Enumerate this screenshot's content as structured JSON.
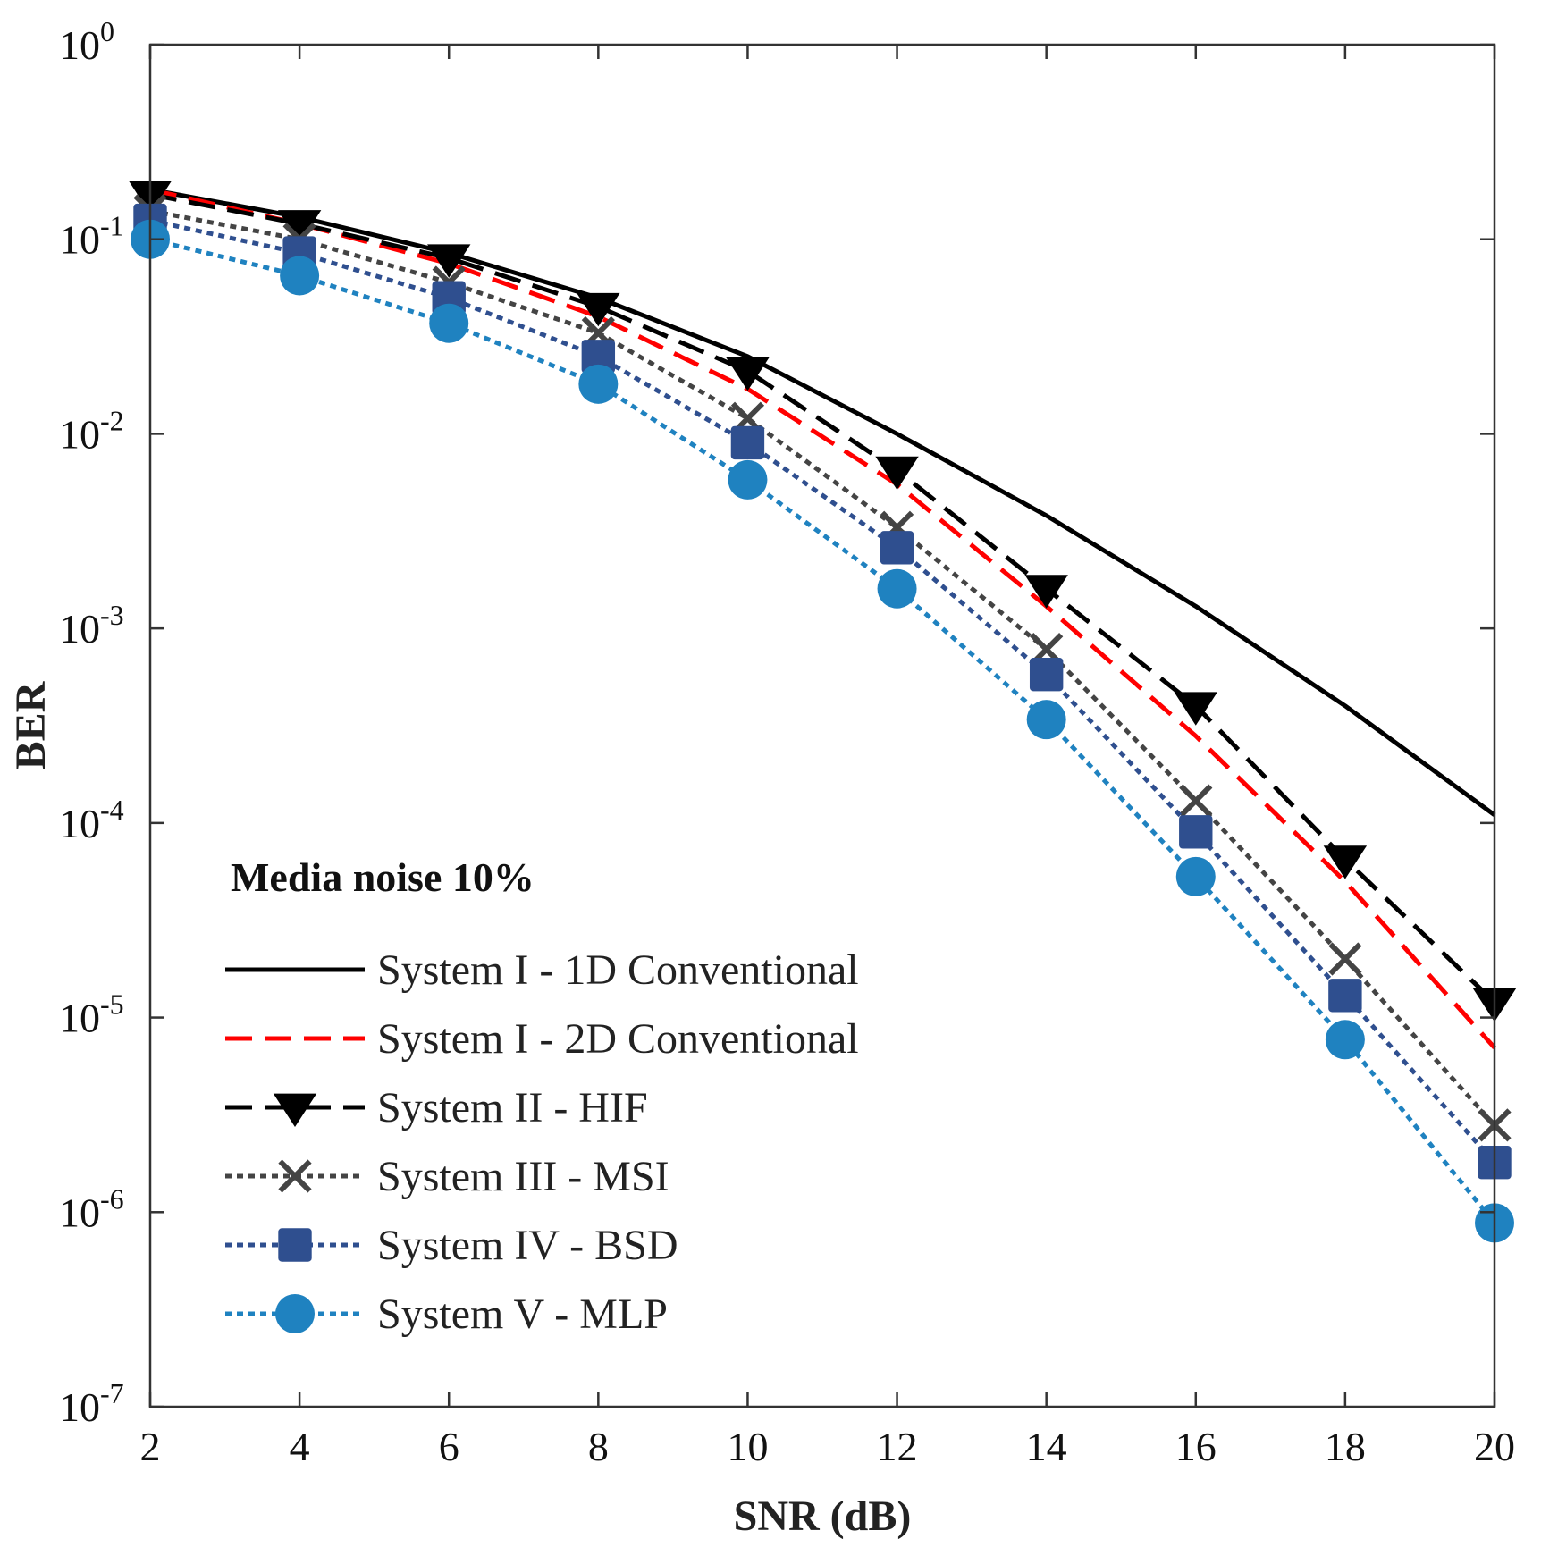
{
  "chart_data": {
    "type": "line",
    "xlabel": "SNR (dB)",
    "ylabel": "BER",
    "xlim": [
      2,
      20
    ],
    "ylim": [
      1e-07,
      1
    ],
    "yscale": "log",
    "x_ticks": [
      2,
      4,
      6,
      8,
      10,
      12,
      14,
      16,
      18,
      20
    ],
    "y_ticks": [
      {
        "value": 1,
        "base": "10",
        "exp": "0"
      },
      {
        "value": 0.1,
        "base": "10",
        "exp": "-1"
      },
      {
        "value": 0.01,
        "base": "10",
        "exp": "-2"
      },
      {
        "value": 0.001,
        "base": "10",
        "exp": "-3"
      },
      {
        "value": 0.0001,
        "base": "10",
        "exp": "-4"
      },
      {
        "value": 1e-05,
        "base": "10",
        "exp": "-5"
      },
      {
        "value": 1e-06,
        "base": "10",
        "exp": "-6"
      },
      {
        "value": 1e-07,
        "base": "10",
        "exp": "-7"
      }
    ],
    "grid": false,
    "legend_title": "Media noise 10%",
    "legend_position": "bottom-left",
    "x": [
      2,
      4,
      6,
      8,
      10,
      12,
      14,
      16,
      18,
      20
    ],
    "series": [
      {
        "name": "System I - 1D Conventional",
        "color": "#000000",
        "dash": "solid",
        "marker": "none",
        "values": [
          0.18,
          0.13,
          0.085,
          0.05,
          0.025,
          0.01,
          0.0038,
          0.0013,
          0.0004,
          0.00011
        ]
      },
      {
        "name": "System I - 2D Conventional",
        "color": "#ff0000",
        "dash": "dashed",
        "marker": "none",
        "values": [
          0.18,
          0.12,
          0.075,
          0.04,
          0.017,
          0.0055,
          0.0013,
          0.00028,
          5e-05,
          7e-06
        ]
      },
      {
        "name": "System II - HIF",
        "color": "#000000",
        "dash": "dashed",
        "marker": "triangle-down",
        "values": [
          0.17,
          0.12,
          0.08,
          0.045,
          0.021,
          0.0065,
          0.0016,
          0.0004,
          6.5e-05,
          1.2e-05
        ]
      },
      {
        "name": "System III - MSI",
        "color": "#444444",
        "dash": "dotted",
        "marker": "x",
        "values": [
          0.14,
          0.1,
          0.06,
          0.033,
          0.012,
          0.0033,
          0.00078,
          0.00013,
          2e-05,
          2.8e-06
        ]
      },
      {
        "name": "System IV - BSD",
        "color": "#2f4f8f",
        "dash": "dotted",
        "marker": "square",
        "values": [
          0.125,
          0.085,
          0.05,
          0.025,
          0.009,
          0.0026,
          0.00058,
          9e-05,
          1.3e-05,
          1.8e-06
        ]
      },
      {
        "name": "System V - MLP",
        "color": "#1f82c0",
        "dash": "dotted",
        "marker": "circle",
        "values": [
          0.1,
          0.065,
          0.037,
          0.018,
          0.0058,
          0.0016,
          0.00034,
          5.3e-05,
          7.7e-06,
          8.8e-07
        ]
      }
    ]
  }
}
